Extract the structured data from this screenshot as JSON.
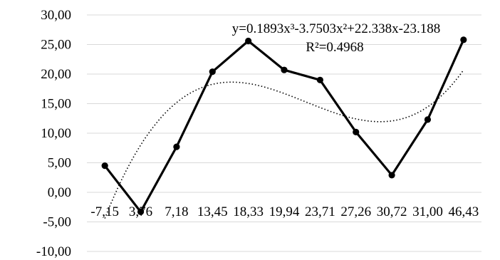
{
  "chart_data": {
    "type": "line",
    "title": "",
    "xlabel": "",
    "ylabel": "",
    "categories": [
      "-7,15",
      "3,76",
      "7,18",
      "13,45",
      "18,33",
      "19,94",
      "23,71",
      "27,26",
      "30,72",
      "31,00",
      "46,43"
    ],
    "series": [
      {
        "values": [
          4.5,
          -3.3,
          7.7,
          20.4,
          25.6,
          20.7,
          19.0,
          10.2,
          2.9,
          12.3,
          25.8
        ],
        "color": "#000000",
        "marker": "circle"
      }
    ],
    "trendline": {
      "type": "polynomial",
      "order": 3,
      "style": "dotted",
      "color": "#000000",
      "coefficients": [
        0.1893,
        -3.7503,
        22.338,
        -23.188
      ],
      "equation_label": "y=0.1893x³-3.7503x²+22.338x-23.188",
      "r2_label": "R²=0.4968"
    },
    "ylim": [
      -10,
      30
    ],
    "yticks": [
      "-10,00",
      "-5,00",
      "0,00",
      "5,00",
      "10,00",
      "15,00",
      "20,00",
      "25,00",
      "30,00"
    ],
    "grid": true,
    "legend": "none"
  }
}
